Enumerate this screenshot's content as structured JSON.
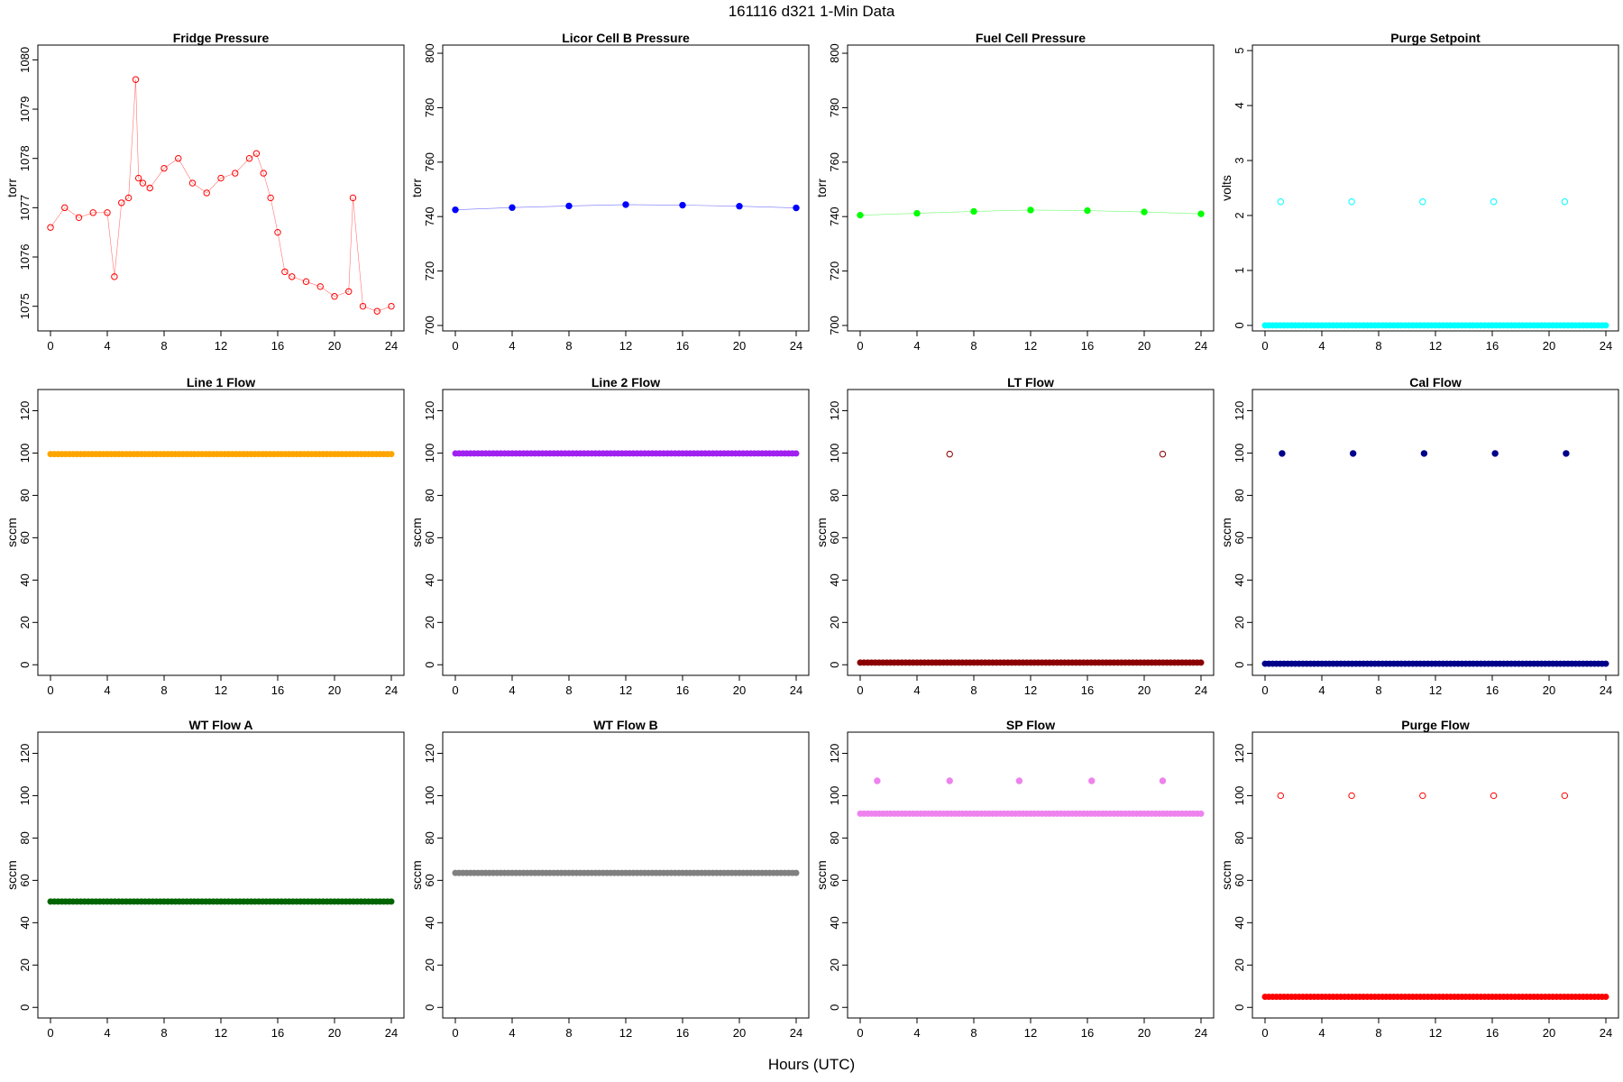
{
  "figure": {
    "title": "161116   d321   1-Min Data",
    "xlabel": "Hours (UTC)"
  },
  "chart_data": [
    {
      "type": "scatter",
      "title": "Fridge Pressure",
      "ylabel": "torr",
      "xlim": [
        0,
        24
      ],
      "ylim": [
        1074.5,
        1080.3
      ],
      "yticks": [
        1075,
        1076,
        1077,
        1078,
        1079,
        1080
      ],
      "xticks": [
        0,
        4,
        8,
        12,
        16,
        20,
        24
      ],
      "color": "#ff0000",
      "marker": "open",
      "series": [
        {
          "x": [
            0,
            1,
            2,
            3,
            4,
            4.5,
            5,
            5.5,
            6,
            6.2,
            6.5,
            7,
            8,
            9,
            10,
            11,
            12,
            13,
            14,
            14.5,
            15,
            15.5,
            16,
            16.5,
            17,
            18,
            19,
            20,
            21,
            21.3,
            22,
            23,
            24
          ],
          "y": [
            1076.6,
            1077.0,
            1076.8,
            1076.9,
            1076.9,
            1075.6,
            1077.1,
            1077.2,
            1079.6,
            1077.6,
            1077.5,
            1077.4,
            1077.8,
            1078.0,
            1077.5,
            1077.3,
            1077.6,
            1077.7,
            1078.0,
            1078.1,
            1077.7,
            1077.2,
            1076.5,
            1075.7,
            1075.6,
            1075.5,
            1075.4,
            1075.2,
            1075.3,
            1077.2,
            1075.0,
            1074.9,
            1075.0
          ]
        }
      ]
    },
    {
      "type": "scatter",
      "title": "Licor Cell B Pressure",
      "ylabel": "torr",
      "xlim": [
        0,
        24
      ],
      "ylim": [
        698,
        803
      ],
      "yticks": [
        700,
        720,
        740,
        760,
        780,
        800
      ],
      "xticks": [
        0,
        4,
        8,
        12,
        16,
        20,
        24
      ],
      "color": "#0000ff",
      "marker": "filled",
      "series": [
        {
          "x": [
            0,
            4,
            8,
            12,
            16,
            20,
            24
          ],
          "y": [
            742.5,
            743.3,
            743.9,
            744.4,
            744.2,
            743.8,
            743.2
          ]
        }
      ]
    },
    {
      "type": "scatter",
      "title": "Fuel Cell Pressure",
      "ylabel": "torr",
      "xlim": [
        0,
        24
      ],
      "ylim": [
        698,
        803
      ],
      "yticks": [
        700,
        720,
        740,
        760,
        780,
        800
      ],
      "xticks": [
        0,
        4,
        8,
        12,
        16,
        20,
        24
      ],
      "color": "#00ff00",
      "marker": "filled",
      "series": [
        {
          "x": [
            0,
            4,
            8,
            12,
            16,
            20,
            24
          ],
          "y": [
            740.5,
            741.2,
            741.9,
            742.4,
            742.2,
            741.7,
            741.0
          ]
        }
      ]
    },
    {
      "type": "scatter",
      "title": "Purge Setpoint",
      "ylabel": "volts",
      "xlim": [
        0,
        24
      ],
      "ylim": [
        -0.1,
        5.1
      ],
      "yticks": [
        0,
        1,
        2,
        3,
        4,
        5
      ],
      "xticks": [
        0,
        4,
        8,
        12,
        16,
        20,
        24
      ],
      "color": "#00ffff",
      "marker": "open",
      "series": [
        {
          "x": [
            0,
            24
          ],
          "y": [
            0,
            0
          ],
          "kind": "baseline"
        },
        {
          "x": [
            1.1,
            6.1,
            11.1,
            16.1,
            21.1
          ],
          "y": [
            2.25,
            2.25,
            2.25,
            2.25,
            2.25
          ]
        }
      ]
    },
    {
      "type": "scatter",
      "title": "Line 1 Flow",
      "ylabel": "sccm",
      "xlim": [
        0,
        24
      ],
      "ylim": [
        -5,
        130
      ],
      "yticks": [
        0,
        20,
        40,
        60,
        80,
        100,
        120
      ],
      "xticks": [
        0,
        4,
        8,
        12,
        16,
        20,
        24
      ],
      "color": "#ffa500",
      "marker": "filled",
      "series": [
        {
          "x": [
            0,
            24
          ],
          "y": [
            99.5,
            99.5
          ],
          "kind": "baseline"
        }
      ]
    },
    {
      "type": "scatter",
      "title": "Line 2 Flow",
      "ylabel": "sccm",
      "xlim": [
        0,
        24
      ],
      "ylim": [
        -5,
        130
      ],
      "yticks": [
        0,
        20,
        40,
        60,
        80,
        100,
        120
      ],
      "xticks": [
        0,
        4,
        8,
        12,
        16,
        20,
        24
      ],
      "color": "#a020f0",
      "marker": "filled",
      "series": [
        {
          "x": [
            0,
            24
          ],
          "y": [
            99.8,
            99.8
          ],
          "kind": "baseline"
        }
      ]
    },
    {
      "type": "scatter",
      "title": "LT Flow",
      "ylabel": "sccm",
      "xlim": [
        0,
        24
      ],
      "ylim": [
        -5,
        130
      ],
      "yticks": [
        0,
        20,
        40,
        60,
        80,
        100,
        120
      ],
      "xticks": [
        0,
        4,
        8,
        12,
        16,
        20,
        24
      ],
      "color": "#8b0000",
      "marker": "open",
      "series": [
        {
          "x": [
            0,
            24
          ],
          "y": [
            1,
            1
          ],
          "kind": "baseline"
        },
        {
          "x": [
            6.3,
            21.3
          ],
          "y": [
            99.5,
            99.5
          ]
        }
      ]
    },
    {
      "type": "scatter",
      "title": "Cal Flow",
      "ylabel": "sccm",
      "xlim": [
        0,
        24
      ],
      "ylim": [
        -5,
        130
      ],
      "yticks": [
        0,
        20,
        40,
        60,
        80,
        100,
        120
      ],
      "xticks": [
        0,
        4,
        8,
        12,
        16,
        20,
        24
      ],
      "color": "#00008b",
      "marker": "filled",
      "series": [
        {
          "x": [
            0,
            24
          ],
          "y": [
            0.5,
            0.5
          ],
          "kind": "baseline"
        },
        {
          "x": [
            1.2,
            6.2,
            11.2,
            16.2,
            21.2
          ],
          "y": [
            99.8,
            99.8,
            99.8,
            99.8,
            99.8
          ]
        }
      ]
    },
    {
      "type": "scatter",
      "title": "WT Flow A",
      "ylabel": "sccm",
      "xlim": [
        0,
        24
      ],
      "ylim": [
        -5,
        130
      ],
      "yticks": [
        0,
        20,
        40,
        60,
        80,
        100,
        120
      ],
      "xticks": [
        0,
        4,
        8,
        12,
        16,
        20,
        24
      ],
      "color": "#006400",
      "marker": "filled",
      "series": [
        {
          "x": [
            0,
            24
          ],
          "y": [
            50,
            50
          ],
          "kind": "baseline"
        }
      ]
    },
    {
      "type": "scatter",
      "title": "WT Flow B",
      "ylabel": "sccm",
      "xlim": [
        0,
        24
      ],
      "ylim": [
        -5,
        130
      ],
      "yticks": [
        0,
        20,
        40,
        60,
        80,
        100,
        120
      ],
      "xticks": [
        0,
        4,
        8,
        12,
        16,
        20,
        24
      ],
      "color": "#808080",
      "marker": "filled",
      "series": [
        {
          "x": [
            0,
            24
          ],
          "y": [
            63.5,
            63.5
          ],
          "kind": "baseline"
        }
      ]
    },
    {
      "type": "scatter",
      "title": "SP Flow",
      "ylabel": "sccm",
      "xlim": [
        0,
        24
      ],
      "ylim": [
        -5,
        130
      ],
      "yticks": [
        0,
        20,
        40,
        60,
        80,
        100,
        120
      ],
      "xticks": [
        0,
        4,
        8,
        12,
        16,
        20,
        24
      ],
      "color": "#ee82ee",
      "marker": "filled",
      "series": [
        {
          "x": [
            0,
            24
          ],
          "y": [
            91.5,
            91.5
          ],
          "kind": "baseline"
        },
        {
          "x": [
            1.2,
            6.3,
            11.2,
            16.3,
            21.3
          ],
          "y": [
            107,
            107,
            107,
            107,
            107
          ]
        }
      ]
    },
    {
      "type": "scatter",
      "title": "Purge Flow",
      "ylabel": "sccm",
      "xlim": [
        0,
        24
      ],
      "ylim": [
        -5,
        130
      ],
      "yticks": [
        0,
        20,
        40,
        60,
        80,
        100,
        120
      ],
      "xticks": [
        0,
        4,
        8,
        12,
        16,
        20,
        24
      ],
      "color": "#ff0000",
      "marker": "open",
      "series": [
        {
          "x": [
            0,
            24
          ],
          "y": [
            5,
            5
          ],
          "kind": "baseline"
        },
        {
          "x": [
            1.1,
            6.1,
            11.1,
            16.1,
            21.1
          ],
          "y": [
            100,
            100,
            100,
            100,
            100
          ]
        }
      ]
    }
  ]
}
